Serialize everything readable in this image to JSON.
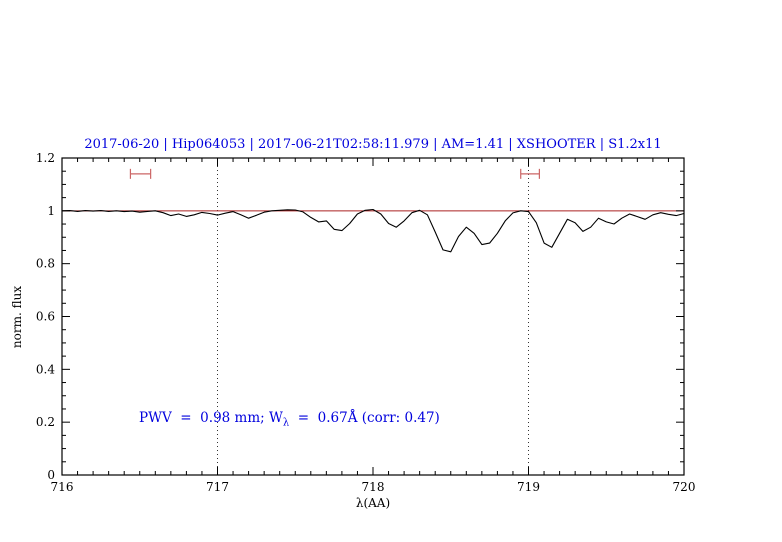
{
  "annotation": {
    "pre": "PWV  =  0.98 mm; W",
    "sub": "λ",
    "post": "  =  0.67Å (corr: 0.47)"
  },
  "chart_data": {
    "type": "line",
    "title": "2017-06-20 | Hip064053 | 2017-06-21T02:58:11.979 | AM=1.41 | XSHOOTER | S1.2x11",
    "xlabel": "λ(AA)",
    "ylabel": "norm. flux",
    "xlim": [
      716,
      720
    ],
    "ylim": [
      0,
      1.2
    ],
    "grid": false,
    "x_ticks": {
      "values": [
        716,
        717,
        718,
        719,
        720
      ],
      "labels": [
        "716",
        "717",
        "718",
        "719",
        "720"
      ],
      "minor_step": 0.1
    },
    "y_ticks": {
      "values": [
        0,
        0.2,
        0.4,
        0.6,
        0.8,
        1.0,
        1.2
      ],
      "labels": [
        "0",
        "0.2",
        "0.4",
        "0.6",
        "0.8",
        "1",
        "1.2"
      ],
      "minor_step": 0.05
    },
    "dotted_vlines": [
      717,
      719
    ],
    "colors": {
      "title": "#0000dd",
      "annotation": "#0000dd",
      "spectrum": "#000000",
      "continuum": "#aa2222",
      "band_markers": "#cc6666",
      "axes": "#000000"
    },
    "series": [
      {
        "name": "continuum fit",
        "color": "#aa2222",
        "constant_y": 1.0
      },
      {
        "name": "observed spectrum",
        "color": "#000000",
        "x_start": 716.0,
        "x_step": 0.05,
        "y": [
          1.0,
          1.001,
          0.998,
          1.001,
          0.999,
          1.001,
          0.998,
          1.0,
          0.997,
          0.999,
          0.995,
          0.998,
          1.0,
          0.993,
          0.982,
          0.988,
          0.979,
          0.985,
          0.994,
          0.99,
          0.984,
          0.991,
          0.997,
          0.985,
          0.972,
          0.983,
          0.995,
          1.0,
          1.002,
          1.004,
          1.003,
          0.996,
          0.975,
          0.958,
          0.962,
          0.93,
          0.925,
          0.952,
          0.988,
          1.002,
          1.005,
          0.988,
          0.952,
          0.938,
          0.962,
          0.993,
          1.002,
          0.985,
          0.92,
          0.852,
          0.845,
          0.903,
          0.938,
          0.915,
          0.872,
          0.878,
          0.915,
          0.962,
          0.992,
          1.0,
          0.997,
          0.955,
          0.878,
          0.862,
          0.915,
          0.968,
          0.955,
          0.922,
          0.938,
          0.972,
          0.958,
          0.95,
          0.972,
          0.988,
          0.978,
          0.968,
          0.985,
          0.993,
          0.987,
          0.982,
          0.99
        ]
      }
    ],
    "band_markers": {
      "color": "#cc6666",
      "y": 1.14,
      "ranges": [
        [
          716.44,
          716.57
        ],
        [
          718.95,
          719.07
        ]
      ]
    }
  }
}
